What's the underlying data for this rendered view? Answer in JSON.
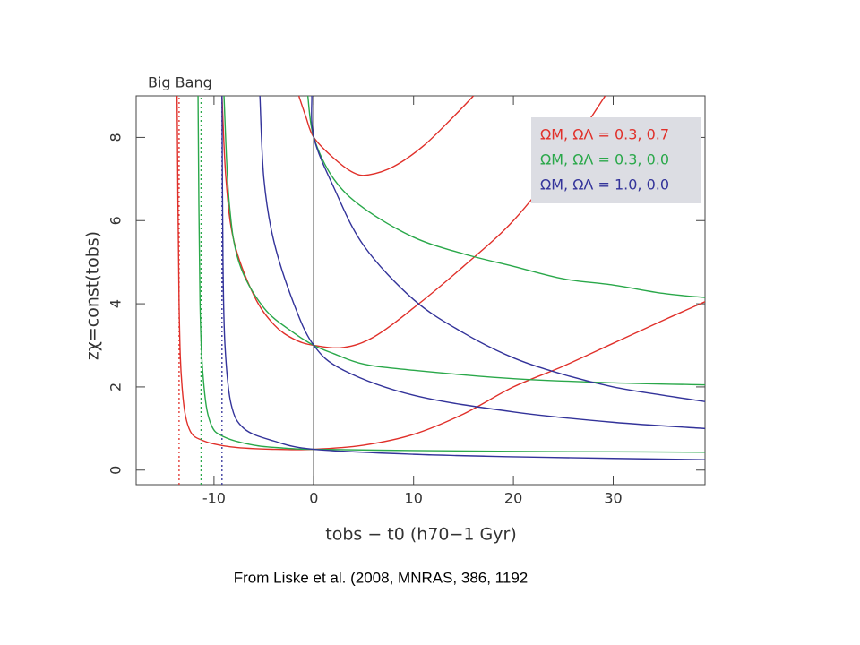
{
  "chart_data": {
    "type": "line",
    "annotation": "Big Bang",
    "xlabel": "tobs − t0 (h70−1 Gyr)",
    "ylabel": "zχ=const(tobs)",
    "caption": "From Liske et al. (2008, MNRAS,  386, 1192",
    "xlim": [
      -17.8,
      39.2
    ],
    "ylim": [
      -0.35,
      9.0
    ],
    "xticks": [
      -10,
      0,
      10,
      20,
      30
    ],
    "yticks": [
      0,
      2,
      4,
      6,
      8
    ],
    "legend": "upper right",
    "zero_line": 0,
    "series": [
      {
        "name": "ΩM, ΩΛ = 0.3, 0.7",
        "color": "#e0302a",
        "big_bang": -13.5,
        "curves": [
          {
            "x": [
              -13.7,
              -13.5,
              -13.2,
              -12.5,
              -11,
              -8,
              -4,
              0,
              5,
              10,
              15,
              20,
              25,
              30,
              35,
              39.2
            ],
            "values": [
              9,
              4,
              2,
              1.0,
              0.7,
              0.55,
              0.5,
              0.5,
              0.6,
              0.86,
              1.35,
              2.0,
              2.5,
              3.05,
              3.6,
              4.05
            ]
          },
          {
            "x": [
              -9.2,
              -8.8,
              -8,
              -6,
              -4,
              -2,
              0,
              3,
              6,
              10,
              15,
              20,
              25,
              29.2
            ],
            "values": [
              9,
              7,
              5.5,
              4.2,
              3.5,
              3.15,
              3.0,
              2.95,
              3.2,
              3.9,
              4.9,
              6.0,
              7.5,
              9
            ]
          },
          {
            "x": [
              -1.5,
              -0.8,
              0,
              2,
              4,
              5.5,
              8,
              11,
              14,
              16
            ],
            "values": [
              9,
              8.5,
              8.0,
              7.5,
              7.15,
              7.1,
              7.3,
              7.8,
              8.5,
              9
            ]
          }
        ]
      },
      {
        "name": "ΩM, ΩΛ = 0.3, 0.0",
        "color": "#2aa84a",
        "big_bang": -11.3,
        "curves": [
          {
            "x": [
              -11.6,
              -11.4,
              -11,
              -10.3,
              -9,
              -6,
              -3,
              0,
              10,
              20,
              30,
              39.2
            ],
            "values": [
              9,
              4,
              2,
              1.1,
              0.8,
              0.6,
              0.53,
              0.5,
              0.47,
              0.45,
              0.44,
              0.43
            ]
          },
          {
            "x": [
              -9,
              -8.5,
              -7.5,
              -5,
              -2,
              0,
              2,
              5,
              10,
              20,
              30,
              39.2
            ],
            "values": [
              9,
              6.5,
              5,
              3.9,
              3.3,
              3.0,
              2.8,
              2.55,
              2.4,
              2.2,
              2.1,
              2.05
            ]
          },
          {
            "x": [
              -0.6,
              0,
              2,
              5,
              10,
              15,
              20,
              25,
              30,
              35,
              39.2
            ],
            "values": [
              9,
              8,
              7.0,
              6.3,
              5.6,
              5.2,
              4.9,
              4.6,
              4.45,
              4.25,
              4.15
            ]
          }
        ]
      },
      {
        "name": "ΩM, ΩΛ = 1.0, 0.0",
        "color": "#33339a",
        "big_bang": -9.2,
        "curves": [
          {
            "x": [
              -9.2,
              -9.1,
              -8.9,
              -8.3,
              -7,
              -4,
              0,
              10,
              20,
              30,
              39.2
            ],
            "values": [
              9,
              5,
              3,
              1.6,
              1.0,
              0.7,
              0.5,
              0.38,
              0.32,
              0.28,
              0.25
            ]
          },
          {
            "x": [
              -5.4,
              -5,
              -4,
              -2,
              0,
              3,
              10,
              20,
              30,
              39.2
            ],
            "values": [
              9,
              7,
              5.5,
              4.0,
              3.0,
              2.4,
              1.8,
              1.4,
              1.15,
              1.0
            ]
          },
          {
            "x": [
              -0.2,
              0,
              2,
              5,
              10,
              15,
              20,
              25,
              30,
              35,
              39.2
            ],
            "values": [
              9,
              8,
              6.8,
              5.4,
              4.1,
              3.3,
              2.7,
              2.3,
              2.0,
              1.8,
              1.65
            ]
          }
        ]
      }
    ]
  }
}
